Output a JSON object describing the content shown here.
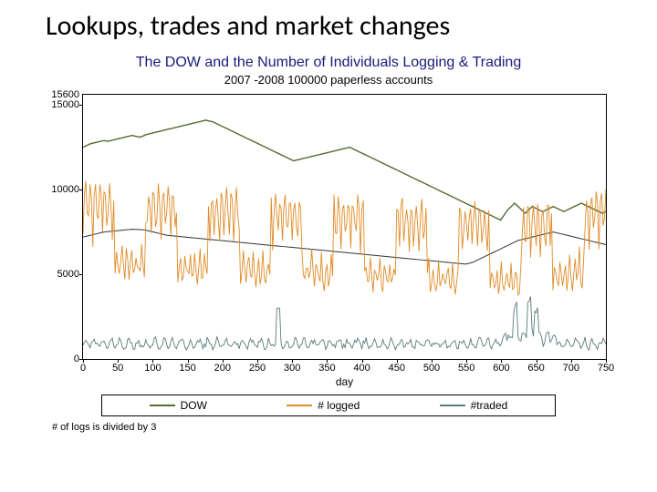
{
  "slide": {
    "title": "Lookups, trades and market changes"
  },
  "chart": {
    "type": "line",
    "title": "The DOW and the Number of Individuals Logging & Trading",
    "subtitle": "2007 -2008 100000 paperless accounts",
    "title_color": "#1a1a7a",
    "title_fontsize": 16,
    "subtitle_fontsize": 13,
    "background_color": "#ffffff",
    "plot_border_color": "#000000",
    "xlabel": "day",
    "xlim": [
      0,
      750
    ],
    "xtick_step": 50,
    "ylim": [
      0,
      15600
    ],
    "yticks": [
      0,
      5000,
      10000,
      15000
    ],
    "footnote": "# of logs is divided by 3",
    "series": {
      "dow": {
        "label": "DOW",
        "color": "#556b2f",
        "line_width": 1.4,
        "values": [
          12500,
          12600,
          12700,
          12750,
          12800,
          12850,
          12900,
          12850,
          12900,
          12950,
          13000,
          13050,
          13100,
          13150,
          13200,
          13150,
          13100,
          13150,
          13250,
          13300,
          13350,
          13400,
          13450,
          13500,
          13550,
          13600,
          13650,
          13700,
          13750,
          13800,
          13850,
          13900,
          13950,
          14000,
          14050,
          14100,
          14050,
          14000,
          13900,
          13800,
          13700,
          13600,
          13500,
          13400,
          13300,
          13200,
          13100,
          13000,
          12900,
          12800,
          12700,
          12600,
          12500,
          12400,
          12300,
          12200,
          12100,
          12000,
          11900,
          11800,
          11700,
          11750,
          11800,
          11850,
          11900,
          11950,
          12000,
          12050,
          12100,
          12150,
          12200,
          12250,
          12300,
          12350,
          12400,
          12450,
          12500,
          12400,
          12300,
          12200,
          12100,
          12000,
          11900,
          11800,
          11700,
          11600,
          11500,
          11400,
          11300,
          11200,
          11100,
          11000,
          10900,
          10800,
          10700,
          10600,
          10500,
          10400,
          10300,
          10200,
          10100,
          10000,
          9900,
          9800,
          9700,
          9600,
          9500,
          9400,
          9300,
          9200,
          9100,
          9000,
          8900,
          8800,
          8700,
          8600,
          8500,
          8400,
          8300,
          8200,
          8500,
          8800,
          9000,
          9200,
          9000,
          8800,
          8600,
          8800,
          9000,
          8900,
          8800,
          8700,
          8800,
          8900,
          9000,
          8900,
          8800,
          8700,
          8800,
          8900,
          9000,
          9100,
          9200,
          9100,
          9000,
          8900,
          8800,
          8700,
          8600,
          8700
        ]
      },
      "dow_smooth": {
        "color": "#333333",
        "line_width": 1,
        "values": [
          7200,
          7250,
          7300,
          7350,
          7400,
          7450,
          7500,
          7520,
          7540,
          7560,
          7580,
          7600,
          7620,
          7640,
          7660,
          7650,
          7640,
          7630,
          7600,
          7550,
          7500,
          7450,
          7400,
          7350,
          7300,
          7280,
          7260,
          7240,
          7220,
          7200,
          7180,
          7160,
          7140,
          7120,
          7100,
          7080,
          7060,
          7040,
          7020,
          7000,
          6980,
          6960,
          6940,
          6920,
          6900,
          6880,
          6860,
          6840,
          6820,
          6800,
          6780,
          6760,
          6740,
          6720,
          6700,
          6680,
          6660,
          6640,
          6620,
          6600,
          6580,
          6560,
          6540,
          6520,
          6500,
          6480,
          6460,
          6440,
          6420,
          6400,
          6380,
          6360,
          6340,
          6320,
          6300,
          6280,
          6260,
          6240,
          6220,
          6200,
          6180,
          6160,
          6140,
          6120,
          6100,
          6080,
          6060,
          6040,
          6020,
          6000,
          5980,
          5960,
          5940,
          5920,
          5900,
          5880,
          5860,
          5840,
          5820,
          5800,
          5780,
          5760,
          5740,
          5720,
          5700,
          5680,
          5660,
          5640,
          5620,
          5600,
          5650,
          5700,
          5800,
          5900,
          6000,
          6100,
          6200,
          6300,
          6400,
          6500,
          6600,
          6700,
          6800,
          6900,
          7000,
          7050,
          7100,
          7150,
          7200,
          7250,
          7300,
          7350,
          7400,
          7450,
          7500,
          7450,
          7400,
          7350,
          7300,
          7250,
          7200,
          7150,
          7100,
          7050,
          7000,
          6950,
          6900,
          6850,
          6800,
          6750
        ]
      },
      "logged": {
        "label": "# logged",
        "color": "#e08b26",
        "line_width": 0.9,
        "base": 7000,
        "osc_amp": 3200,
        "noise_amp": 900
      },
      "traded": {
        "label": "#traded",
        "color": "#5b7a7a",
        "line_width": 0.9,
        "base": 900,
        "osc_amp": 700,
        "noise_amp": 400,
        "spikes": [
          [
            280,
            3000
          ],
          [
            620,
            2800
          ],
          [
            640,
            3200
          ],
          [
            650,
            2600
          ]
        ]
      }
    },
    "legend": {
      "border_color": "#000000",
      "items": [
        {
          "key": "dow",
          "label": "DOW",
          "color": "#556b2f"
        },
        {
          "key": "logged",
          "label": "# logged",
          "color": "#e08b26"
        },
        {
          "key": "traded",
          "label": "#traded",
          "color": "#5b7a7a"
        }
      ]
    }
  }
}
